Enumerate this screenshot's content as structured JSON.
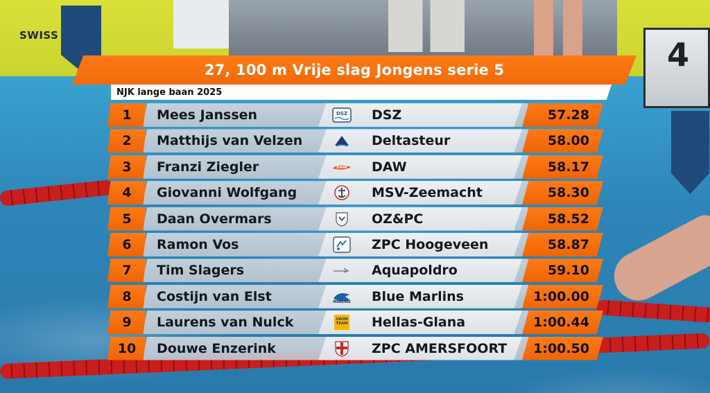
{
  "event": {
    "title": "27, 100 m Vrije slag Jongens serie 5",
    "subtitle": "NJK lange baan 2025"
  },
  "venue": {
    "sponsor_text": "SWISS",
    "lane_number": "4"
  },
  "results": [
    {
      "rank": "1",
      "name": "Mees Janssen",
      "club": "DSZ",
      "time": "57.28",
      "logo": "dsz-logo-icon"
    },
    {
      "rank": "2",
      "name": "Matthijs van Velzen",
      "club": "Deltasteur",
      "time": "58.00",
      "logo": "deltasteur-logo-icon"
    },
    {
      "rank": "3",
      "name": "Franzi Ziegler",
      "club": "DAW",
      "time": "58.17",
      "logo": "daw-logo-icon"
    },
    {
      "rank": "4",
      "name": "Giovanni Wolfgang",
      "club": "MSV-Zeemacht",
      "time": "58.30",
      "logo": "msv-zeemacht-logo-icon"
    },
    {
      "rank": "5",
      "name": "Daan Overmars",
      "club": "OZ&PC",
      "time": "58.52",
      "logo": "ozpc-logo-icon"
    },
    {
      "rank": "6",
      "name": "Ramon Vos",
      "club": "ZPC Hoogeveen",
      "time": "58.87",
      "logo": "zpc-hoogeveen-logo-icon"
    },
    {
      "rank": "7",
      "name": "Tim Slagers",
      "club": "Aquapoldro",
      "time": "59.10",
      "logo": "aquapoldro-logo-icon"
    },
    {
      "rank": "8",
      "name": "Costijn van Elst",
      "club": "Blue Marlins",
      "time": "1:00.00",
      "logo": "blue-marlins-logo-icon"
    },
    {
      "rank": "9",
      "name": "Laurens van Nulck",
      "club": "Hellas-Glana",
      "time": "1:00.44",
      "logo": "hellas-glana-logo-icon"
    },
    {
      "rank": "10",
      "name": "Douwe Enzerink",
      "club": "ZPC AMERSFOORT",
      "time": "1:00.50",
      "logo": "zpc-amersfoort-logo-icon"
    }
  ],
  "colors": {
    "accent_orange": "#f06a0a",
    "row_grey": "#c6cfd8",
    "club_panel": "#e6eaee"
  }
}
